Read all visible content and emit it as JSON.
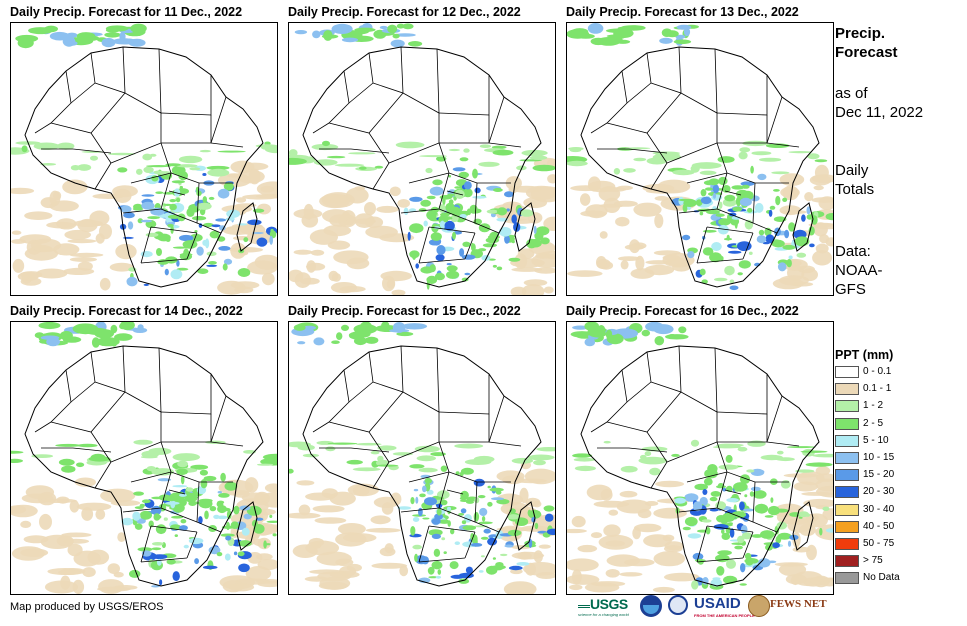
{
  "panels": [
    {
      "title": "Daily Precip. Forecast for 11 Dec., 2022",
      "map": "africa-precip-map"
    },
    {
      "title": "Daily Precip. Forecast for 12 Dec., 2022",
      "map": "africa-precip-map"
    },
    {
      "title": "Daily Precip. Forecast for 13 Dec., 2022",
      "map": "africa-precip-map"
    },
    {
      "title": "Daily Precip. Forecast for 14 Dec., 2022",
      "map": "africa-precip-map"
    },
    {
      "title": "Daily Precip. Forecast for 15 Dec., 2022",
      "map": "africa-precip-map"
    },
    {
      "title": "Daily Precip. Forecast for 16 Dec., 2022",
      "map": "africa-precip-map"
    }
  ],
  "sidebar": {
    "heading_line1": "Precip.",
    "heading_line2": "Forecast",
    "asof_line1": "as of",
    "asof_line2": "Dec 11, 2022",
    "totals_line1": "Daily",
    "totals_line2": "Totals",
    "data_line1": "Data:",
    "data_line2": "NOAA-",
    "data_line3": "GFS"
  },
  "legend": {
    "title": "PPT (mm)",
    "items": [
      {
        "label": "0 - 0.1",
        "color": "#ffffff"
      },
      {
        "label": "0.1 - 1",
        "color": "#ecd9b8"
      },
      {
        "label": "1 - 2",
        "color": "#b4f0a8"
      },
      {
        "label": "2 - 5",
        "color": "#7ee36c"
      },
      {
        "label": "5 - 10",
        "color": "#b0ecf4"
      },
      {
        "label": "10 - 15",
        "color": "#8cc0f0"
      },
      {
        "label": "15 - 20",
        "color": "#5a9ae8"
      },
      {
        "label": "20 - 30",
        "color": "#2864dc"
      },
      {
        "label": "30 - 40",
        "color": "#f8e07c"
      },
      {
        "label": "40 - 50",
        "color": "#f4a020"
      },
      {
        "label": "50 - 75",
        "color": "#f03c0c"
      },
      {
        "label": "> 75",
        "color": "#a02020"
      },
      {
        "label": "No Data",
        "color": "#999999"
      }
    ]
  },
  "footer": {
    "credit": "Map produced by USGS/EROS",
    "logos": {
      "usgs": "USGS",
      "usgs_tagline": "science for a changing world",
      "usaid": "USAID",
      "usaid_tagline": "FROM THE AMERICAN PEOPLE",
      "fewsnet": "FEWS NET"
    }
  }
}
